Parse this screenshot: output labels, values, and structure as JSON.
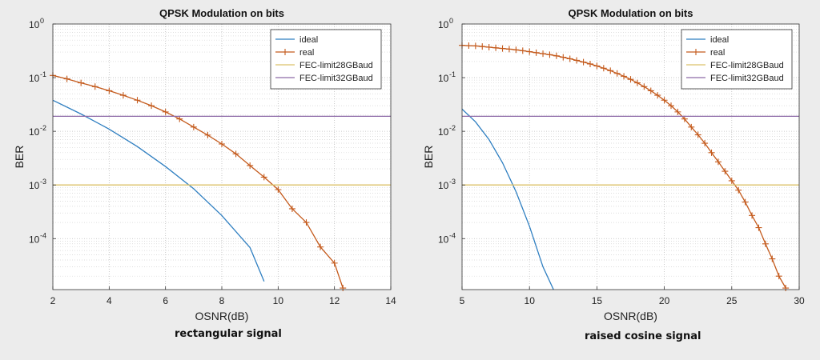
{
  "captions": {
    "left": "rectangular signal",
    "right": "raised cosine signal"
  },
  "colors": {
    "ideal": "#2f7fc1",
    "real": "#c45a1c",
    "fec28": "#dcc26a",
    "fec32": "#8e6aa8"
  },
  "chart_data": [
    {
      "type": "line",
      "title": "QPSK Modulation on bits",
      "xlabel": "OSNR(dB)",
      "ylabel": "BER",
      "xlim": [
        2,
        14
      ],
      "ylim_exp": [
        -4.95,
        0
      ],
      "y_scale": "log",
      "grid": true,
      "legend_position": "top-right",
      "x_ticks": [
        "2",
        "4",
        "6",
        "8",
        "10",
        "12",
        "14"
      ],
      "y_ticks": [
        "10",
        "10",
        "10",
        "10",
        "10"
      ],
      "y_tick_exponents": [
        "0",
        "-1",
        "-2",
        "-3",
        "-4"
      ],
      "series": [
        {
          "name": "ideal",
          "color_key": "ideal",
          "markers": false,
          "x": [
            2,
            3,
            4,
            5,
            6,
            7,
            8,
            9,
            9.5
          ],
          "y": [
            0.038,
            0.021,
            0.011,
            0.0052,
            0.0022,
            0.00085,
            0.00027,
            6.8e-05,
            1.6e-05
          ]
        },
        {
          "name": "real",
          "color_key": "real",
          "markers": true,
          "x": [
            2,
            2.5,
            3,
            3.5,
            4,
            4.5,
            5,
            5.5,
            6,
            6.5,
            7,
            7.5,
            8,
            8.5,
            9,
            9.5,
            10,
            10.5,
            11,
            11.5,
            12,
            12.3
          ],
          "y": [
            0.11,
            0.095,
            0.08,
            0.068,
            0.057,
            0.047,
            0.038,
            0.03,
            0.023,
            0.017,
            0.012,
            0.0085,
            0.0058,
            0.0038,
            0.0023,
            0.0014,
            0.00082,
            0.00036,
            0.0002,
            7e-05,
            3.5e-05,
            1.2e-05
          ]
        },
        {
          "name": "FEC-limit28GBaud",
          "color_key": "fec28",
          "markers": false,
          "x": [
            2,
            14
          ],
          "y": [
            0.001,
            0.001
          ]
        },
        {
          "name": "FEC-limit32GBaud",
          "color_key": "fec32",
          "markers": false,
          "x": [
            2,
            14
          ],
          "y": [
            0.019,
            0.019
          ]
        }
      ]
    },
    {
      "type": "line",
      "title": "QPSK Modulation on bits",
      "xlabel": "OSNR(dB)",
      "ylabel": "BER",
      "xlim": [
        5,
        30
      ],
      "ylim_exp": [
        -4.95,
        0
      ],
      "y_scale": "log",
      "grid": true,
      "legend_position": "top-right",
      "x_ticks": [
        "5",
        "10",
        "15",
        "20",
        "25",
        "30"
      ],
      "y_ticks": [
        "10",
        "10",
        "10",
        "10",
        "10"
      ],
      "y_tick_exponents": [
        "0",
        "-1",
        "-2",
        "-3",
        "-4"
      ],
      "series": [
        {
          "name": "ideal",
          "color_key": "ideal",
          "markers": false,
          "x": [
            5,
            6,
            7,
            8,
            9,
            10,
            11,
            11.8
          ],
          "y": [
            0.026,
            0.015,
            0.007,
            0.0026,
            0.00075,
            0.00017,
            3e-05,
            1.1e-05
          ]
        },
        {
          "name": "real",
          "color_key": "real",
          "markers": true,
          "x": [
            5,
            5.5,
            6,
            6.5,
            7,
            7.5,
            8,
            8.5,
            9,
            9.5,
            10,
            10.5,
            11,
            11.5,
            12,
            12.5,
            13,
            13.5,
            14,
            14.5,
            15,
            15.5,
            16,
            16.5,
            17,
            17.5,
            18,
            18.5,
            19,
            19.5,
            20,
            20.5,
            21,
            21.5,
            22,
            22.5,
            23,
            23.5,
            24,
            24.5,
            25,
            25.5,
            26,
            26.5,
            27,
            27.5,
            28,
            28.5,
            29
          ],
          "y": [
            0.4,
            0.395,
            0.39,
            0.38,
            0.37,
            0.36,
            0.35,
            0.34,
            0.33,
            0.318,
            0.305,
            0.292,
            0.28,
            0.268,
            0.255,
            0.24,
            0.225,
            0.21,
            0.195,
            0.18,
            0.165,
            0.15,
            0.135,
            0.12,
            0.106,
            0.093,
            0.08,
            0.068,
            0.057,
            0.047,
            0.038,
            0.03,
            0.023,
            0.017,
            0.012,
            0.0086,
            0.006,
            0.004,
            0.0027,
            0.0018,
            0.0012,
            0.0008,
            0.00048,
            0.00027,
            0.00016,
            8e-05,
            4.2e-05,
            2e-05,
            1.2e-05
          ]
        },
        {
          "name": "FEC-limit28GBaud",
          "color_key": "fec28",
          "markers": false,
          "x": [
            5,
            30
          ],
          "y": [
            0.001,
            0.001
          ]
        },
        {
          "name": "FEC-limit32GBaud",
          "color_key": "fec32",
          "markers": false,
          "x": [
            5,
            30
          ],
          "y": [
            0.019,
            0.019
          ]
        }
      ]
    }
  ]
}
